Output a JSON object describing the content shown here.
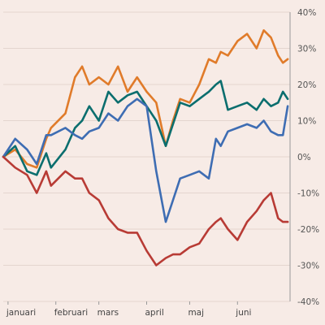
{
  "chart_data": {
    "type": "line",
    "title": "",
    "xlabel": "",
    "ylabel": "",
    "ylim": [
      -40,
      40
    ],
    "y_ticks": [
      40,
      30,
      20,
      10,
      0,
      -10,
      -20,
      -30,
      -40
    ],
    "y_tick_labels": [
      "40%",
      "30%",
      "20%",
      "10%",
      "0%",
      "-10%",
      "-20%",
      "-30%",
      "-40%"
    ],
    "y_axis_position": "right",
    "grid": true,
    "legend": "none",
    "x_range": [
      0,
      6
    ],
    "x_tick_positions": [
      0.1,
      1.1,
      2.0,
      3.0,
      3.9,
      4.9
    ],
    "x_tick_labels": [
      "januari",
      "februari",
      "mars",
      "april",
      "maj",
      "juni"
    ],
    "series": [
      {
        "color": "#e07b2a",
        "x": [
          0,
          0.25,
          0.5,
          0.7,
          0.9,
          1.0,
          1.3,
          1.5,
          1.65,
          1.8,
          2.0,
          2.2,
          2.4,
          2.6,
          2.8,
          3.0,
          3.2,
          3.4,
          3.55,
          3.7,
          3.9,
          4.1,
          4.3,
          4.45,
          4.55,
          4.7,
          4.9,
          5.1,
          5.3,
          5.45,
          5.6,
          5.75,
          5.85,
          5.95
        ],
        "y": [
          0,
          2,
          -2,
          -3,
          5,
          8,
          12,
          22,
          25,
          20,
          22,
          20,
          25,
          18,
          22,
          18,
          15,
          3,
          10,
          16,
          15,
          20,
          27,
          26,
          29,
          28,
          32,
          34,
          30,
          35,
          33,
          28,
          26,
          27
        ]
      },
      {
        "color": "#0b6e6e",
        "x": [
          0,
          0.25,
          0.5,
          0.7,
          0.9,
          1.0,
          1.3,
          1.5,
          1.65,
          1.8,
          2.0,
          2.2,
          2.4,
          2.6,
          2.8,
          3.0,
          3.2,
          3.4,
          3.55,
          3.7,
          3.9,
          4.1,
          4.3,
          4.45,
          4.55,
          4.7,
          4.9,
          5.1,
          5.3,
          5.45,
          5.6,
          5.75,
          5.85,
          5.95
        ],
        "y": [
          0,
          3,
          -4,
          -5,
          1,
          -3,
          2,
          8,
          10,
          14,
          10,
          18,
          15,
          17,
          18,
          14,
          10,
          3,
          9,
          15,
          14,
          16,
          18,
          20,
          21,
          13,
          14,
          15,
          13,
          16,
          14,
          15,
          18,
          16
        ]
      },
      {
        "color": "#3e6db3",
        "x": [
          0,
          0.25,
          0.5,
          0.7,
          0.9,
          1.0,
          1.3,
          1.5,
          1.65,
          1.8,
          2.0,
          2.2,
          2.4,
          2.6,
          2.8,
          3.0,
          3.2,
          3.4,
          3.55,
          3.7,
          3.9,
          4.1,
          4.3,
          4.45,
          4.55,
          4.7,
          4.9,
          5.1,
          5.3,
          5.45,
          5.6,
          5.75,
          5.85,
          5.95
        ],
        "y": [
          0,
          5,
          2,
          -2,
          6,
          6,
          8,
          6,
          5,
          7,
          8,
          12,
          10,
          14,
          16,
          14,
          -4,
          -18,
          -12,
          -6,
          -5,
          -4,
          -6,
          5,
          3,
          7,
          8,
          9,
          8,
          10,
          7,
          6,
          6,
          14
        ]
      },
      {
        "color": "#b83b35",
        "x": [
          0,
          0.25,
          0.5,
          0.7,
          0.9,
          1.0,
          1.3,
          1.5,
          1.65,
          1.8,
          2.0,
          2.2,
          2.4,
          2.6,
          2.8,
          3.0,
          3.2,
          3.4,
          3.55,
          3.7,
          3.9,
          4.1,
          4.3,
          4.45,
          4.55,
          4.7,
          4.9,
          5.1,
          5.3,
          5.45,
          5.6,
          5.75,
          5.85,
          5.95
        ],
        "y": [
          0,
          -3,
          -5,
          -10,
          -4,
          -8,
          -4,
          -6,
          -6,
          -10,
          -12,
          -17,
          -20,
          -21,
          -21,
          -26,
          -30,
          -28,
          -27,
          -27,
          -25,
          -24,
          -20,
          -18,
          -17,
          -20,
          -23,
          -18,
          -15,
          -12,
          -10,
          -17,
          -18,
          -18
        ]
      }
    ]
  }
}
